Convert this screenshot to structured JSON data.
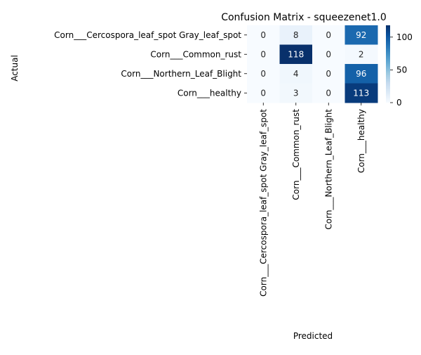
{
  "chart_data": {
    "type": "heatmap",
    "title": "Confusion Matrix - squeezenet1.0",
    "xlabel": "Predicted",
    "ylabel": "Actual",
    "x_categories": [
      "Corn___Cercospora_leaf_spot Gray_leaf_spot",
      "Corn___Common_rust",
      "Corn___Northern_Leaf_Blight",
      "Corn___healthy"
    ],
    "y_categories": [
      "Corn___Cercospora_leaf_spot Gray_leaf_spot",
      "Corn___Common_rust",
      "Corn___Northern_Leaf_Blight",
      "Corn___healthy"
    ],
    "values": [
      [
        0,
        8,
        0,
        92
      ],
      [
        0,
        118,
        0,
        2
      ],
      [
        0,
        4,
        0,
        96
      ],
      [
        0,
        3,
        0,
        113
      ]
    ],
    "colormap": "Blues",
    "colorbar": {
      "min": 0,
      "max": 118,
      "ticks": [
        "0",
        "50",
        "100"
      ]
    },
    "annotate": true
  }
}
